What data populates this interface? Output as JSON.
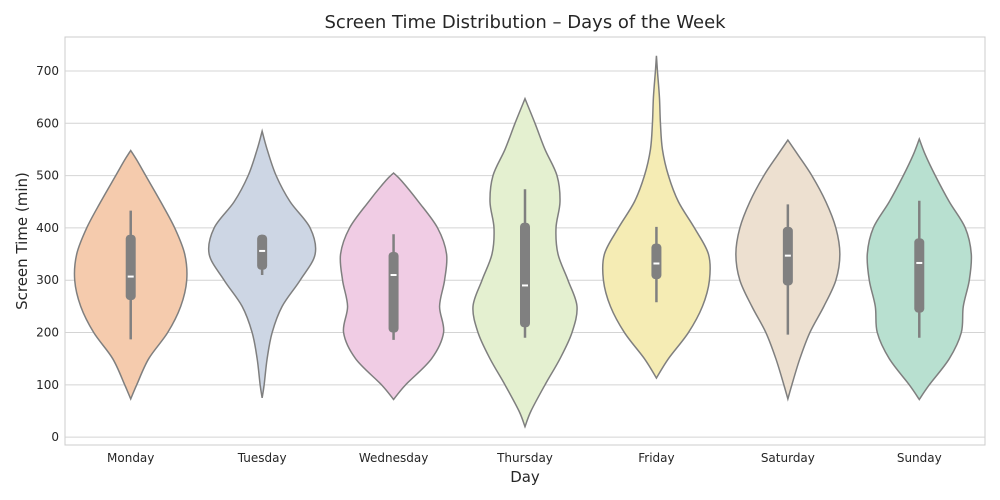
{
  "chart_data": {
    "type": "violin",
    "title": "Screen Time Distribution – Days of the Week",
    "xlabel": "Day",
    "ylabel": "Screen Time (min)",
    "ylim": [
      -15,
      765
    ],
    "yticks": [
      0,
      100,
      200,
      300,
      400,
      500,
      600,
      700
    ],
    "grid": true,
    "categories": [
      "Monday",
      "Tuesday",
      "Wednesday",
      "Thursday",
      "Friday",
      "Saturday",
      "Sunday"
    ],
    "colors": [
      "#f5cbad",
      "#cdd6e4",
      "#f0cce4",
      "#e4f0d0",
      "#f5ecb4",
      "#ede0d0",
      "#b8e0d0"
    ],
    "violins": [
      {
        "day": "Monday",
        "min": 73,
        "max": 548,
        "q1": 262,
        "median": 307,
        "q3": 387,
        "whisker_low": 187,
        "whisker_high": 433,
        "profile": [
          [
            73,
            0
          ],
          [
            100,
            6
          ],
          [
            150,
            18
          ],
          [
            200,
            37
          ],
          [
            250,
            50
          ],
          [
            300,
            56
          ],
          [
            350,
            54
          ],
          [
            400,
            44
          ],
          [
            450,
            30
          ],
          [
            500,
            15
          ],
          [
            530,
            6
          ],
          [
            548,
            0
          ]
        ]
      },
      {
        "day": "Tuesday",
        "min": 75,
        "max": 585,
        "q1": 320,
        "median": 356,
        "q3": 387,
        "whisker_low": 310,
        "whisker_high": 387,
        "profile": [
          [
            75,
            0
          ],
          [
            100,
            2
          ],
          [
            150,
            5
          ],
          [
            200,
            10
          ],
          [
            250,
            20
          ],
          [
            300,
            38
          ],
          [
            350,
            53
          ],
          [
            400,
            48
          ],
          [
            450,
            28
          ],
          [
            500,
            14
          ],
          [
            550,
            5
          ],
          [
            585,
            0
          ]
        ]
      },
      {
        "day": "Wednesday",
        "min": 72,
        "max": 505,
        "q1": 200,
        "median": 310,
        "q3": 354,
        "whisker_low": 186,
        "whisker_high": 388,
        "profile": [
          [
            72,
            0
          ],
          [
            100,
            12
          ],
          [
            150,
            38
          ],
          [
            200,
            50
          ],
          [
            250,
            46
          ],
          [
            300,
            51
          ],
          [
            350,
            53
          ],
          [
            400,
            44
          ],
          [
            450,
            25
          ],
          [
            490,
            8
          ],
          [
            505,
            0
          ]
        ]
      },
      {
        "day": "Thursday",
        "min": 20,
        "max": 647,
        "q1": 210,
        "median": 290,
        "q3": 410,
        "whisker_low": 190,
        "whisker_high": 474,
        "profile": [
          [
            20,
            0
          ],
          [
            50,
            6
          ],
          [
            100,
            20
          ],
          [
            150,
            35
          ],
          [
            200,
            47
          ],
          [
            250,
            52
          ],
          [
            300,
            43
          ],
          [
            350,
            33
          ],
          [
            400,
            31
          ],
          [
            450,
            35
          ],
          [
            500,
            32
          ],
          [
            550,
            20
          ],
          [
            600,
            10
          ],
          [
            647,
            0
          ]
        ]
      },
      {
        "day": "Friday",
        "min": 113,
        "max": 729,
        "q1": 302,
        "median": 332,
        "q3": 370,
        "whisker_low": 258,
        "whisker_high": 402,
        "profile": [
          [
            113,
            0
          ],
          [
            150,
            12
          ],
          [
            200,
            32
          ],
          [
            250,
            46
          ],
          [
            300,
            53
          ],
          [
            350,
            52
          ],
          [
            400,
            38
          ],
          [
            450,
            22
          ],
          [
            500,
            12
          ],
          [
            550,
            6
          ],
          [
            600,
            4
          ],
          [
            650,
            3
          ],
          [
            700,
            1
          ],
          [
            729,
            0
          ]
        ]
      },
      {
        "day": "Saturday",
        "min": 73,
        "max": 568,
        "q1": 290,
        "median": 347,
        "q3": 402,
        "whisker_low": 196,
        "whisker_high": 445,
        "profile": [
          [
            73,
            0
          ],
          [
            100,
            4
          ],
          [
            150,
            12
          ],
          [
            200,
            22
          ],
          [
            250,
            36
          ],
          [
            300,
            48
          ],
          [
            350,
            52
          ],
          [
            400,
            48
          ],
          [
            450,
            38
          ],
          [
            500,
            24
          ],
          [
            540,
            10
          ],
          [
            568,
            0
          ]
        ]
      },
      {
        "day": "Sunday",
        "min": 72,
        "max": 570,
        "q1": 238,
        "median": 333,
        "q3": 380,
        "whisker_low": 190,
        "whisker_high": 452,
        "profile": [
          [
            72,
            0
          ],
          [
            100,
            10
          ],
          [
            150,
            30
          ],
          [
            200,
            42
          ],
          [
            250,
            44
          ],
          [
            300,
            50
          ],
          [
            350,
            52
          ],
          [
            400,
            46
          ],
          [
            450,
            30
          ],
          [
            500,
            16
          ],
          [
            540,
            6
          ],
          [
            570,
            0
          ]
        ]
      }
    ]
  }
}
